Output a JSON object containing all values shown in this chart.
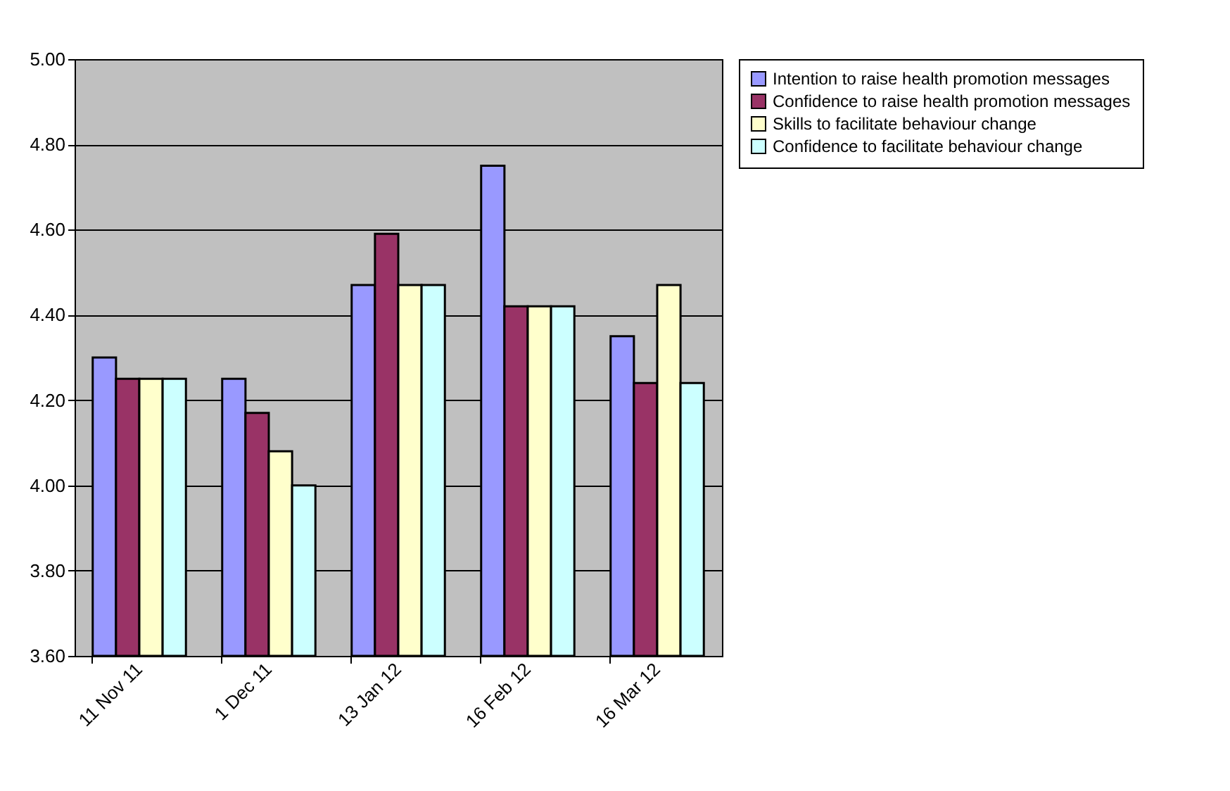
{
  "chart_data": {
    "type": "bar",
    "categories": [
      "11 Nov 11",
      "1 Dec 11",
      "13 Jan 12",
      "16 Feb 12",
      "16 Mar 12"
    ],
    "series": [
      {
        "name": "Intention to raise health promotion messages",
        "color": "#9999ff",
        "values": [
          4.3,
          4.25,
          4.47,
          4.75,
          4.35
        ]
      },
      {
        "name": "Confidence to raise health promotion messages",
        "color": "#993366",
        "values": [
          4.25,
          4.17,
          4.59,
          4.42,
          4.24
        ]
      },
      {
        "name": "Skills to facilitate behaviour change",
        "color": "#ffffcc",
        "values": [
          4.25,
          4.08,
          4.47,
          4.42,
          4.47
        ]
      },
      {
        "name": "Confidence to facilitate behaviour change",
        "color": "#ccffff",
        "values": [
          4.25,
          4.0,
          4.47,
          4.42,
          4.24
        ]
      }
    ],
    "ylim": [
      3.6,
      5.0
    ],
    "yticks": [
      {
        "value": 3.6,
        "label": "3.60"
      },
      {
        "value": 3.8,
        "label": "3.80"
      },
      {
        "value": 4.0,
        "label": "4.00"
      },
      {
        "value": 4.2,
        "label": "4.20"
      },
      {
        "value": 4.4,
        "label": "4.40"
      },
      {
        "value": 4.6,
        "label": "4.60"
      },
      {
        "value": 4.8,
        "label": "4.80"
      },
      {
        "value": 5.0,
        "label": "5.00"
      }
    ],
    "grid": "y",
    "legend": "right"
  }
}
